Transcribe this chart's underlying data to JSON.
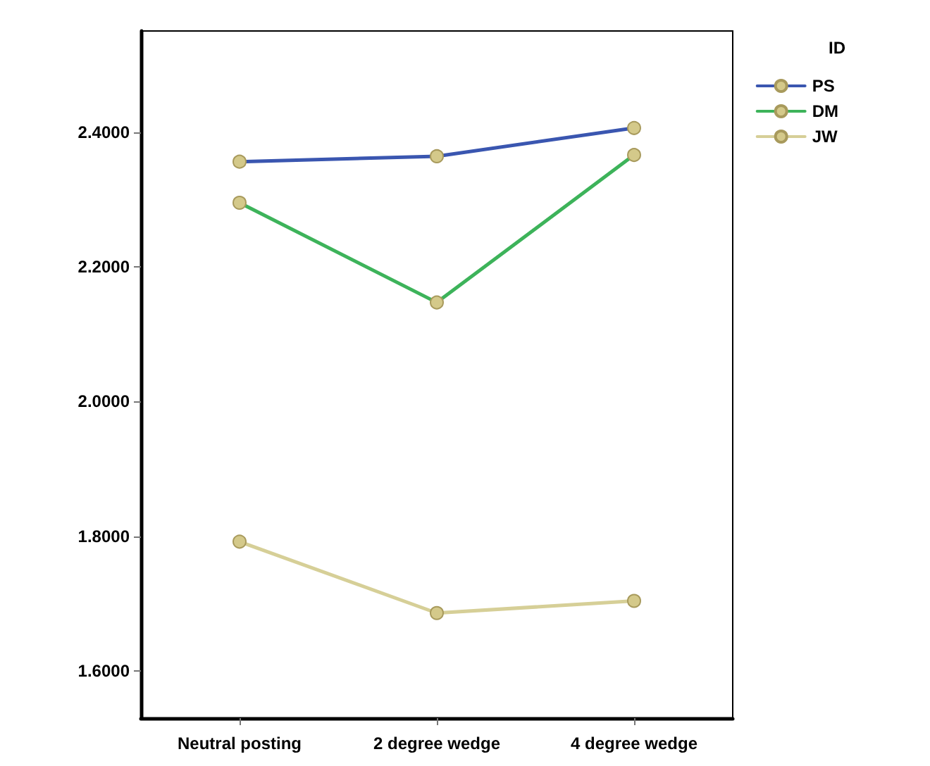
{
  "chart_data": {
    "type": "line",
    "legend_title": "ID",
    "categories": [
      "Neutral posting",
      "2 degree wedge",
      "4 degree wedge"
    ],
    "series": [
      {
        "name": "PS",
        "color": "#3a56b0",
        "values": [
          2.356,
          2.364,
          2.406
        ]
      },
      {
        "name": "DM",
        "color": "#3db35a",
        "values": [
          2.295,
          2.147,
          2.366
        ]
      },
      {
        "name": "JW",
        "color": "#d6cf97",
        "values": [
          1.792,
          1.686,
          1.704
        ]
      }
    ],
    "ylim": [
      1.53,
      2.55
    ],
    "yticks": [
      {
        "value": 1.6,
        "label": "1.6000"
      },
      {
        "value": 1.8,
        "label": "1.8000"
      },
      {
        "value": 2.0,
        "label": "2.0000"
      },
      {
        "value": 2.2,
        "label": "2.2000"
      },
      {
        "value": 2.4,
        "label": "2.4000"
      }
    ],
    "grid": false,
    "legend": "top right",
    "marker": "circle",
    "line_style": "solid"
  }
}
